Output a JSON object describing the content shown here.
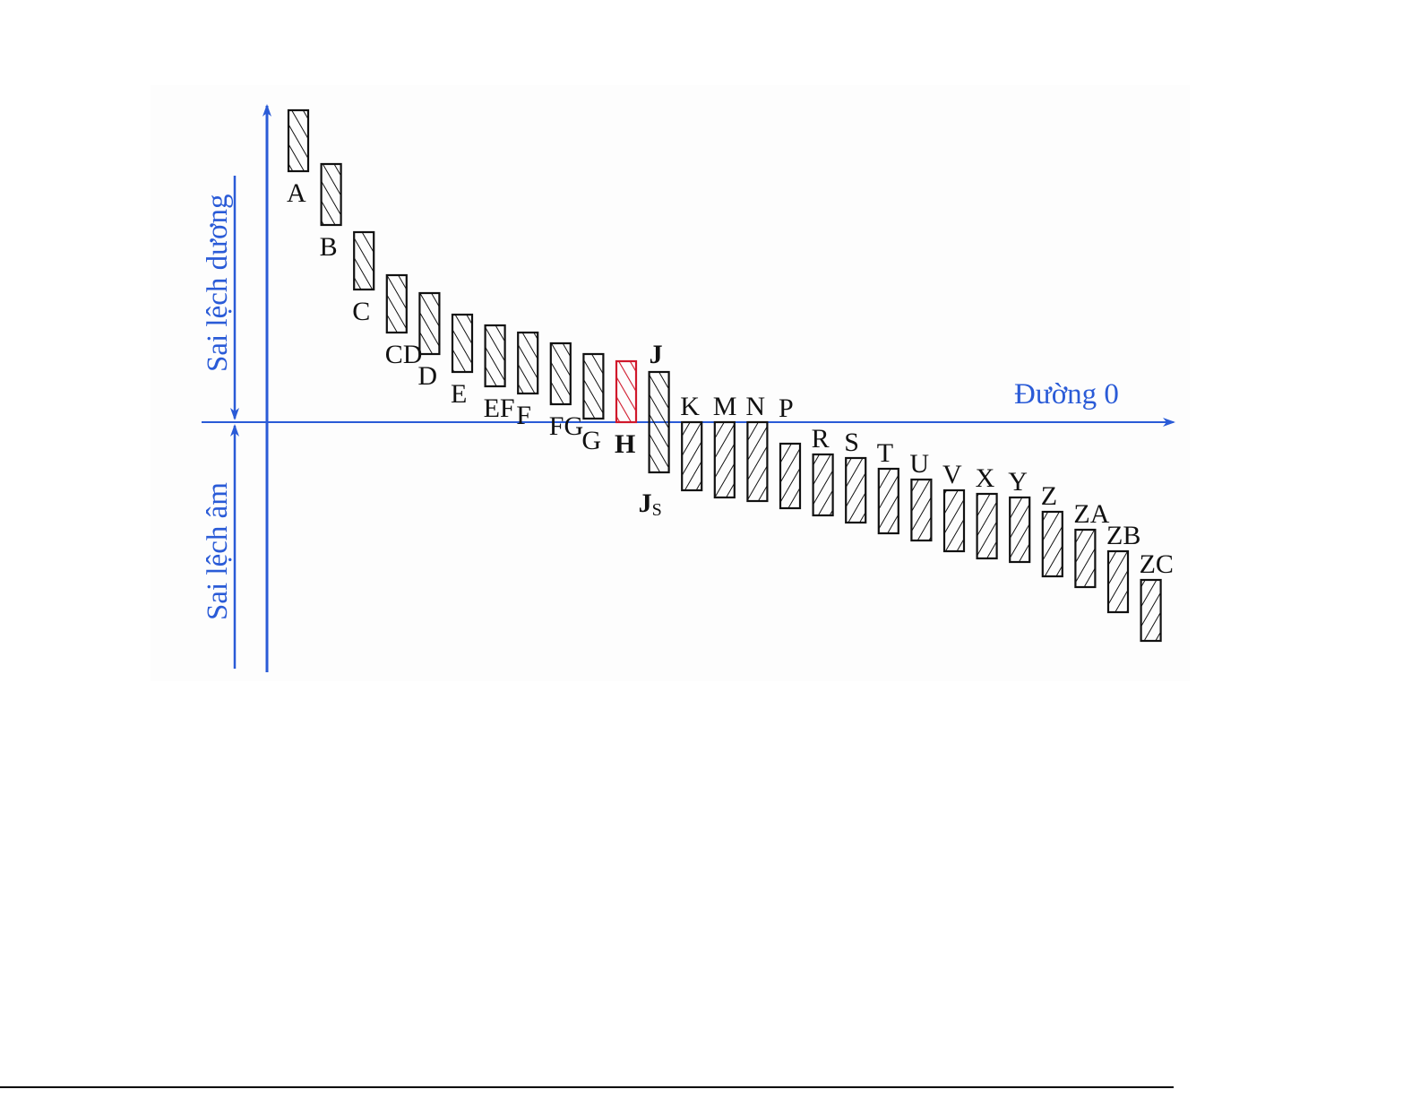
{
  "axis": {
    "horizontal_label": "Đường 0",
    "positive_label": "Sai lệch dương",
    "negative_label": "Sai lệch âm",
    "color": "#2a5bd7"
  },
  "zones": [
    {
      "name": "A",
      "upper": 8.7,
      "lower": 7.0
    },
    {
      "name": "B",
      "upper": 7.2,
      "lower": 5.5
    },
    {
      "name": "C",
      "upper": 5.3,
      "lower": 3.7
    },
    {
      "name": "CD",
      "upper": 4.1,
      "lower": 2.5
    },
    {
      "name": "D",
      "upper": 3.6,
      "lower": 1.9
    },
    {
      "name": "E",
      "upper": 3.0,
      "lower": 1.4
    },
    {
      "name": "EF",
      "upper": 2.7,
      "lower": 1.0
    },
    {
      "name": "F",
      "upper": 2.5,
      "lower": 0.8
    },
    {
      "name": "FG",
      "upper": 2.2,
      "lower": 0.5
    },
    {
      "name": "G",
      "upper": 1.9,
      "lower": 0.1
    },
    {
      "name": "H",
      "upper": 1.7,
      "lower": 0.0,
      "highlight": true,
      "color": "#d0182b"
    },
    {
      "name": "J",
      "upper": 1.4,
      "lower": -1.4,
      "sublabel": "S",
      "bold": true
    },
    {
      "name": "K",
      "upper": 0.0,
      "lower": -1.9
    },
    {
      "name": "M",
      "upper": 0.0,
      "lower": -2.1
    },
    {
      "name": "N",
      "upper": 0.0,
      "lower": -2.2
    },
    {
      "name": "P",
      "upper": -0.6,
      "lower": -2.4
    },
    {
      "name": "R",
      "upper": -0.9,
      "lower": -2.6
    },
    {
      "name": "S",
      "upper": -1.0,
      "lower": -2.8
    },
    {
      "name": "T",
      "upper": -1.3,
      "lower": -3.1
    },
    {
      "name": "U",
      "upper": -1.6,
      "lower": -3.3
    },
    {
      "name": "V",
      "upper": -1.9,
      "lower": -3.6
    },
    {
      "name": "X",
      "upper": -2.0,
      "lower": -3.8
    },
    {
      "name": "Y",
      "upper": -2.1,
      "lower": -3.9
    },
    {
      "name": "Z",
      "upper": -2.5,
      "lower": -4.3
    },
    {
      "name": "ZA",
      "upper": -3.0,
      "lower": -4.6
    },
    {
      "name": "ZB",
      "upper": -3.6,
      "lower": -5.3
    },
    {
      "name": "ZC",
      "upper": -4.4,
      "lower": -6.1
    }
  ]
}
